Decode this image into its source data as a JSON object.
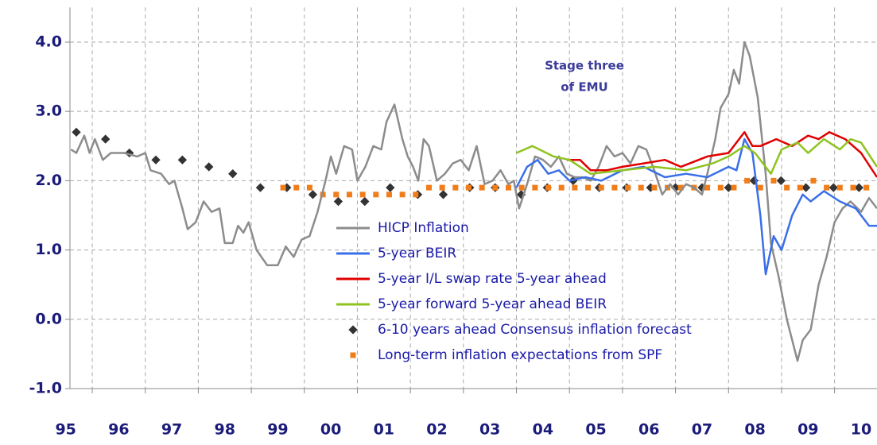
{
  "chart_data": {
    "type": "line",
    "annotation": [
      "Stage three",
      "of EMU"
    ],
    "xlim": [
      1995.58,
      2010.8
    ],
    "xticks": [
      {
        "value": 1995,
        "label": "95"
      },
      {
        "value": 1996,
        "label": "96"
      },
      {
        "value": 1997,
        "label": "97"
      },
      {
        "value": 1998,
        "label": "98"
      },
      {
        "value": 1999,
        "label": "99"
      },
      {
        "value": 2000,
        "label": "00"
      },
      {
        "value": 2001,
        "label": "01"
      },
      {
        "value": 2002,
        "label": "02"
      },
      {
        "value": 2003,
        "label": "03"
      },
      {
        "value": 2004,
        "label": "04"
      },
      {
        "value": 2005,
        "label": "05"
      },
      {
        "value": 2006,
        "label": "06"
      },
      {
        "value": 2007,
        "label": "07"
      },
      {
        "value": 2008,
        "label": "08"
      },
      {
        "value": 2009,
        "label": "09"
      },
      {
        "value": 2010,
        "label": "10"
      }
    ],
    "ylim": [
      -1.0,
      4.5
    ],
    "yticks": [
      {
        "value": 4,
        "label": "4.0"
      },
      {
        "value": 3,
        "label": "3.0"
      },
      {
        "value": 2,
        "label": "2.0"
      },
      {
        "value": 1,
        "label": "1.0"
      },
      {
        "value": 0,
        "label": "0.0"
      },
      {
        "value": -1,
        "label": "-1.0"
      }
    ],
    "grid": true,
    "legend_position": "center",
    "series": [
      {
        "name": "HICP Inflation",
        "color": "#8c8c8c",
        "style": "line",
        "x": [
          1995.6,
          1995.7,
          1995.85,
          1995.95,
          1996.05,
          1996.2,
          1996.35,
          1996.6,
          1996.85,
          1997.0,
          1997.1,
          1997.3,
          1997.45,
          1997.55,
          1997.7,
          1997.8,
          1997.95,
          1998.1,
          1998.25,
          1998.4,
          1998.5,
          1998.65,
          1998.75,
          1998.85,
          1998.95,
          1999.1,
          1999.3,
          1999.5,
          1999.65,
          1999.8,
          1999.95,
          2000.1,
          2000.25,
          2000.4,
          2000.5,
          2000.6,
          2000.75,
          2000.9,
          2001.0,
          2001.15,
          2001.3,
          2001.45,
          2001.55,
          2001.7,
          2001.85,
          2001.95,
          2002.05,
          2002.15,
          2002.25,
          2002.35,
          2002.5,
          2002.65,
          2002.8,
          2002.95,
          2003.1,
          2003.25,
          2003.4,
          2003.55,
          2003.7,
          2003.85,
          2003.95,
          2004.05,
          2004.2,
          2004.35,
          2004.5,
          2004.65,
          2004.8,
          2004.95,
          2005.1,
          2005.25,
          2005.4,
          2005.55,
          2005.7,
          2005.85,
          2006.0,
          2006.15,
          2006.3,
          2006.45,
          2006.6,
          2006.75,
          2006.9,
          2007.05,
          2007.2,
          2007.35,
          2007.5,
          2007.6,
          2007.75,
          2007.85,
          2008.0,
          2008.1,
          2008.2,
          2008.3,
          2008.4,
          2008.55,
          2008.7,
          2008.8,
          2008.95,
          2009.1,
          2009.3,
          2009.4,
          2009.55,
          2009.7,
          2009.85,
          2010.0,
          2010.15,
          2010.3,
          2010.5,
          2010.65,
          2010.8
        ],
        "values": [
          2.45,
          2.4,
          2.65,
          2.4,
          2.6,
          2.3,
          2.4,
          2.4,
          2.35,
          2.4,
          2.15,
          2.1,
          1.95,
          2.0,
          1.6,
          1.3,
          1.4,
          1.7,
          1.55,
          1.6,
          1.1,
          1.1,
          1.35,
          1.25,
          1.4,
          1.0,
          0.78,
          0.78,
          1.05,
          0.9,
          1.15,
          1.2,
          1.55,
          2.0,
          2.35,
          2.1,
          2.5,
          2.45,
          2.0,
          2.2,
          2.5,
          2.45,
          2.85,
          3.1,
          2.6,
          2.35,
          2.2,
          2.0,
          2.6,
          2.5,
          2.0,
          2.1,
          2.25,
          2.3,
          2.15,
          2.5,
          1.95,
          2.0,
          2.15,
          1.95,
          2.0,
          1.6,
          1.95,
          2.35,
          2.3,
          2.2,
          2.35,
          2.1,
          2.05,
          2.05,
          2.0,
          2.2,
          2.5,
          2.35,
          2.4,
          2.25,
          2.5,
          2.45,
          2.15,
          1.8,
          1.95,
          1.8,
          1.95,
          1.9,
          1.8,
          2.1,
          2.6,
          3.05,
          3.25,
          3.6,
          3.4,
          4.0,
          3.8,
          3.2,
          2.1,
          1.1,
          0.6,
          0.0,
          -0.6,
          -0.3,
          -0.15,
          0.5,
          0.9,
          1.4,
          1.6,
          1.7,
          1.55,
          1.75,
          1.6
        ]
      },
      {
        "name": "5-year BEIR",
        "color": "#3a6fe8",
        "style": "line",
        "x": [
          2004.0,
          2004.2,
          2004.4,
          2004.6,
          2004.8,
          2005.0,
          2005.3,
          2005.6,
          2006.0,
          2006.4,
          2006.8,
          2007.2,
          2007.6,
          2008.0,
          2008.15,
          2008.3,
          2008.45,
          2008.6,
          2008.7,
          2008.85,
          2009.0,
          2009.2,
          2009.4,
          2009.55,
          2009.8,
          2010.1,
          2010.4,
          2010.65,
          2010.8
        ],
        "values": [
          1.9,
          2.2,
          2.3,
          2.1,
          2.15,
          2.0,
          2.05,
          2.0,
          2.15,
          2.2,
          2.05,
          2.1,
          2.05,
          2.2,
          2.15,
          2.6,
          2.4,
          1.5,
          0.65,
          1.2,
          1.0,
          1.5,
          1.8,
          1.7,
          1.85,
          1.7,
          1.6,
          1.35,
          1.35
        ]
      },
      {
        "name": "5-year I/L swap rate 5-year ahead",
        "color": "#e00000",
        "style": "line",
        "x": [
          2004.95,
          2005.2,
          2005.4,
          2005.7,
          2006.0,
          2006.4,
          2006.8,
          2007.1,
          2007.6,
          2008.0,
          2008.3,
          2008.45,
          2008.6,
          2008.9,
          2009.2,
          2009.5,
          2009.7,
          2009.9,
          2010.2,
          2010.5,
          2010.8
        ],
        "values": [
          2.3,
          2.3,
          2.15,
          2.15,
          2.2,
          2.25,
          2.3,
          2.2,
          2.35,
          2.4,
          2.7,
          2.5,
          2.5,
          2.6,
          2.5,
          2.65,
          2.6,
          2.7,
          2.6,
          2.4,
          2.05
        ]
      },
      {
        "name": "5-year forward 5-year ahead BEIR",
        "color": "#8fc31f",
        "style": "line",
        "x": [
          2004.0,
          2004.3,
          2004.7,
          2005.0,
          2005.4,
          2006.0,
          2006.6,
          2007.2,
          2007.7,
          2008.0,
          2008.3,
          2008.5,
          2008.8,
          2009.0,
          2009.3,
          2009.5,
          2009.8,
          2010.1,
          2010.3,
          2010.5,
          2010.8
        ],
        "values": [
          2.4,
          2.5,
          2.35,
          2.3,
          2.1,
          2.15,
          2.2,
          2.15,
          2.25,
          2.35,
          2.5,
          2.4,
          2.1,
          2.45,
          2.55,
          2.4,
          2.6,
          2.45,
          2.6,
          2.55,
          2.2
        ]
      },
      {
        "name": "6-10 years ahead Consensus inflation forecast",
        "color": "#333333",
        "style": "diamond",
        "x": [
          1995.7,
          1996.25,
          1996.7,
          1997.2,
          1997.7,
          1998.2,
          1998.65,
          1999.17,
          1999.67,
          2000.16,
          2000.64,
          2001.14,
          2001.62,
          2002.14,
          2002.62,
          2003.12,
          2003.6,
          2004.09,
          2004.58,
          2005.07,
          2005.56,
          2006.08,
          2006.53,
          2007.0,
          2007.5,
          2008.0,
          2008.48,
          2008.99,
          2009.46,
          2009.98,
          2010.46
        ],
        "values": [
          2.7,
          2.6,
          2.4,
          2.3,
          2.3,
          2.2,
          2.1,
          1.9,
          1.9,
          1.8,
          1.7,
          1.7,
          1.9,
          1.8,
          1.8,
          1.9,
          1.9,
          1.8,
          1.9,
          2.0,
          1.9,
          1.9,
          1.9,
          1.9,
          1.9,
          1.9,
          2.0,
          2.0,
          1.9,
          1.9,
          1.9
        ]
      },
      {
        "name": "Long-term inflation expectations from SPF",
        "color": "#f07d1a",
        "style": "square",
        "x": [
          1999.6,
          1999.85,
          2000.1,
          2000.35,
          2000.6,
          2000.85,
          2001.1,
          2001.35,
          2001.6,
          2001.85,
          2002.1,
          2002.35,
          2002.6,
          2002.85,
          2003.1,
          2003.35,
          2003.6,
          2003.85,
          2004.1,
          2004.35,
          2004.6,
          2004.85,
          2005.1,
          2005.35,
          2005.6,
          2005.85,
          2006.1,
          2006.35,
          2006.6,
          2006.85,
          2007.1,
          2007.35,
          2007.6,
          2007.85,
          2008.1,
          2008.35,
          2008.6,
          2008.85,
          2009.1,
          2009.35,
          2009.6,
          2009.85,
          2010.1,
          2010.35,
          2010.6
        ],
        "values": [
          1.9,
          1.9,
          1.9,
          1.8,
          1.8,
          1.8,
          1.8,
          1.8,
          1.8,
          1.8,
          1.8,
          1.9,
          1.9,
          1.9,
          1.9,
          1.9,
          1.9,
          1.9,
          1.9,
          1.9,
          1.9,
          1.9,
          1.9,
          1.9,
          1.9,
          1.9,
          1.9,
          1.9,
          1.9,
          1.9,
          1.9,
          1.9,
          1.9,
          1.9,
          1.9,
          2.0,
          1.9,
          2.0,
          1.9,
          1.9,
          2.0,
          1.9,
          1.9,
          1.9,
          1.9
        ]
      }
    ]
  }
}
